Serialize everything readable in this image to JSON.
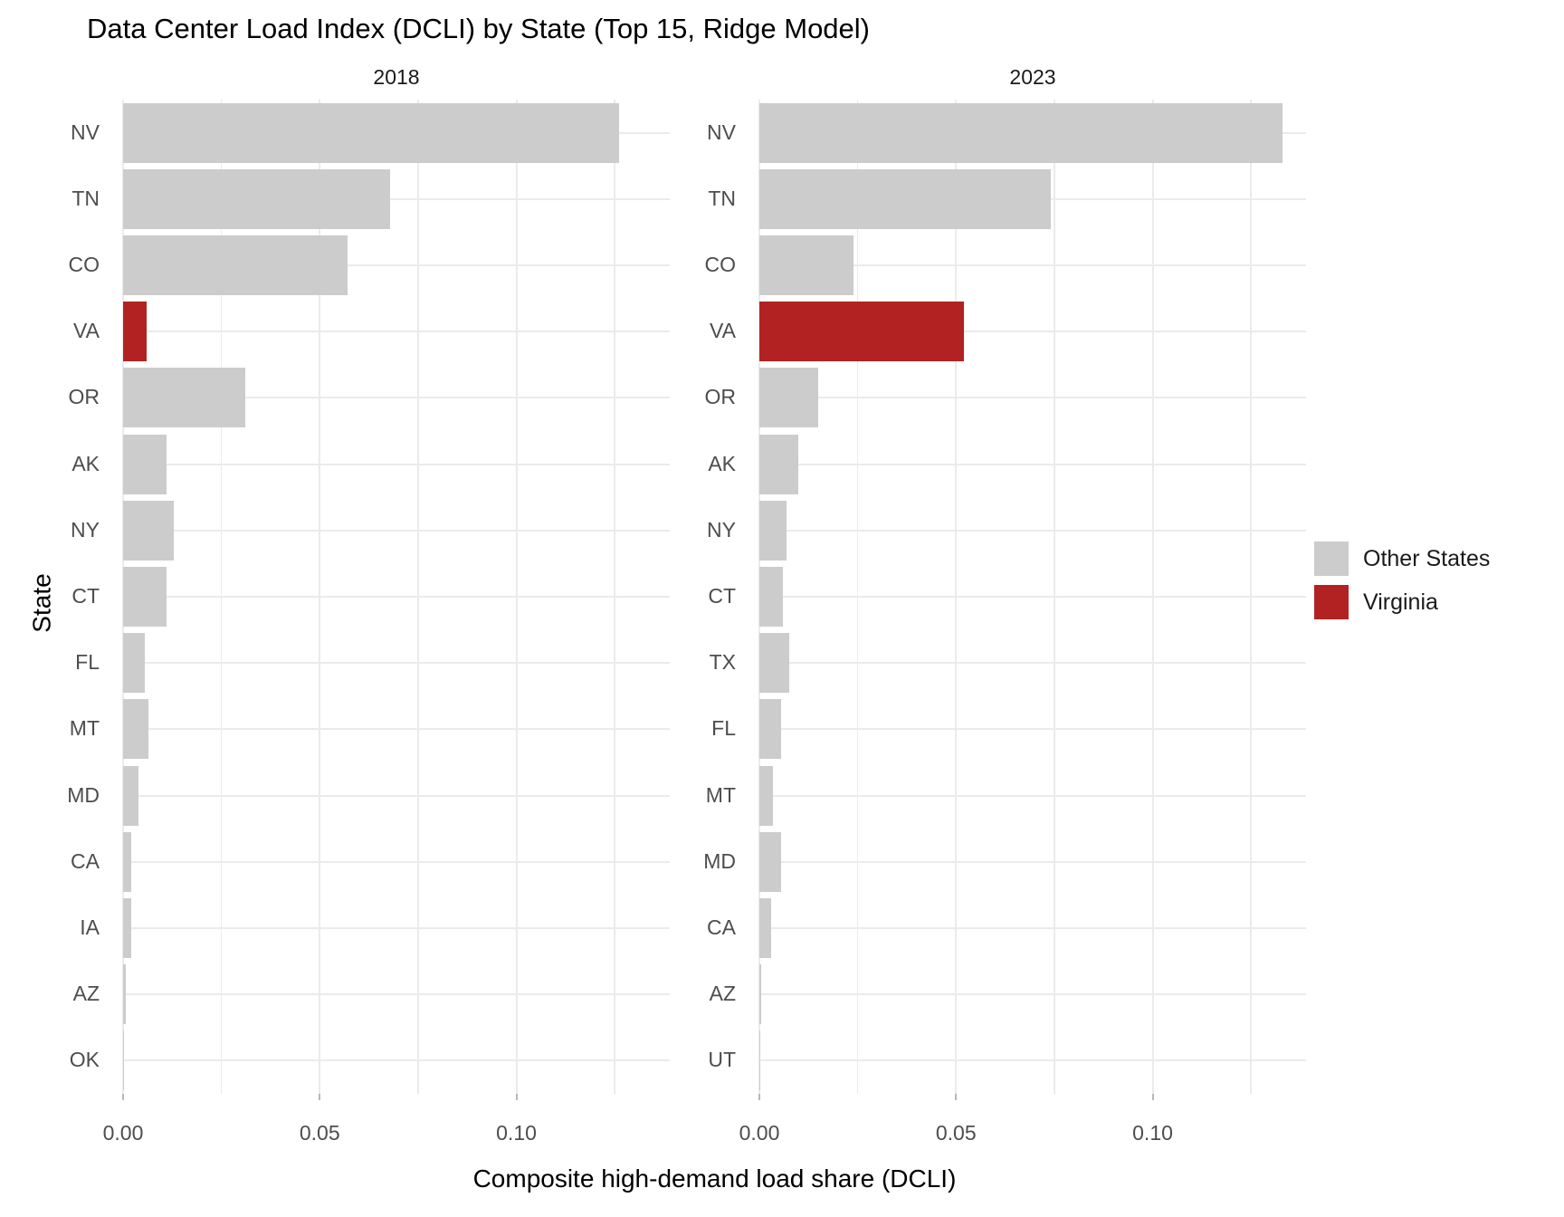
{
  "title": "Data Center Load Index (DCLI) by State (Top 15, Ridge Model)",
  "x_axis_title": "Composite high-demand load share (DCLI)",
  "y_axis_title": "State",
  "colors": {
    "other": "#cccccc",
    "virginia": "#b22222",
    "gridline": "#ebebeb",
    "axis_text": "#4d4d4d",
    "strip_text": "#1a1a1a"
  },
  "legend": {
    "items": [
      {
        "label": "Other States",
        "group": "other"
      },
      {
        "label": "Virginia",
        "group": "virginia"
      }
    ]
  },
  "chart_data": {
    "type": "bar",
    "orientation": "horizontal",
    "xlim": [
      0,
      0.139
    ],
    "grid": true,
    "legend_position": "right",
    "x_ticks": [
      {
        "value": 0.0,
        "label": "0.00"
      },
      {
        "value": 0.05,
        "label": "0.05"
      },
      {
        "value": 0.1,
        "label": "0.10"
      }
    ],
    "minor_gridlines": [
      0.025,
      0.075,
      0.125
    ],
    "facets": [
      {
        "label": "2018",
        "states": [
          {
            "code": "NV",
            "value": 0.126,
            "group": "other"
          },
          {
            "code": "TN",
            "value": 0.068,
            "group": "other"
          },
          {
            "code": "CO",
            "value": 0.057,
            "group": "other"
          },
          {
            "code": "VA",
            "value": 0.006,
            "group": "virginia"
          },
          {
            "code": "OR",
            "value": 0.031,
            "group": "other"
          },
          {
            "code": "AK",
            "value": 0.011,
            "group": "other"
          },
          {
            "code": "NY",
            "value": 0.013,
            "group": "other"
          },
          {
            "code": "CT",
            "value": 0.011,
            "group": "other"
          },
          {
            "code": "FL",
            "value": 0.0055,
            "group": "other"
          },
          {
            "code": "MT",
            "value": 0.0065,
            "group": "other"
          },
          {
            "code": "MD",
            "value": 0.004,
            "group": "other"
          },
          {
            "code": "CA",
            "value": 0.002,
            "group": "other"
          },
          {
            "code": "IA",
            "value": 0.002,
            "group": "other"
          },
          {
            "code": "AZ",
            "value": 0.0008,
            "group": "other"
          },
          {
            "code": "OK",
            "value": 0.0002,
            "group": "other"
          }
        ]
      },
      {
        "label": "2023",
        "states": [
          {
            "code": "NV",
            "value": 0.133,
            "group": "other"
          },
          {
            "code": "TN",
            "value": 0.074,
            "group": "other"
          },
          {
            "code": "CO",
            "value": 0.024,
            "group": "other"
          },
          {
            "code": "VA",
            "value": 0.052,
            "group": "virginia"
          },
          {
            "code": "OR",
            "value": 0.015,
            "group": "other"
          },
          {
            "code": "AK",
            "value": 0.01,
            "group": "other"
          },
          {
            "code": "NY",
            "value": 0.007,
            "group": "other"
          },
          {
            "code": "CT",
            "value": 0.006,
            "group": "other"
          },
          {
            "code": "TX",
            "value": 0.0075,
            "group": "other"
          },
          {
            "code": "FL",
            "value": 0.0055,
            "group": "other"
          },
          {
            "code": "MT",
            "value": 0.0035,
            "group": "other"
          },
          {
            "code": "MD",
            "value": 0.0055,
            "group": "other"
          },
          {
            "code": "CA",
            "value": 0.003,
            "group": "other"
          },
          {
            "code": "AZ",
            "value": 0.0004,
            "group": "other"
          },
          {
            "code": "UT",
            "value": 0.0001,
            "group": "other"
          }
        ]
      }
    ]
  }
}
